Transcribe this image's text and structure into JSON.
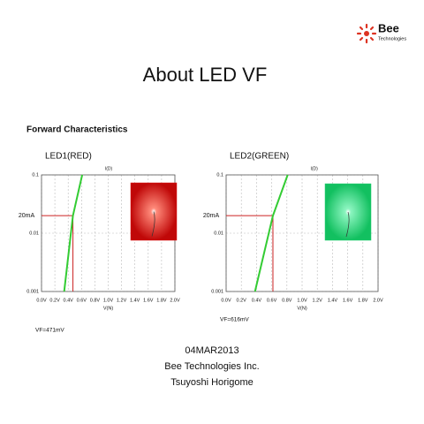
{
  "logo": {
    "name": "Bee",
    "subtitle": "Technologies"
  },
  "title": "About LED VF",
  "heading": "Forward Characteristics",
  "footer": [
    "04MAR2013",
    "Bee Technologies Inc.",
    "Tsuyoshi Horigome"
  ],
  "chart_data": [
    {
      "type": "line",
      "title": "LED1(RED)",
      "x_label": "V(N)",
      "xlim": [
        0,
        2
      ],
      "ylim": [
        0.001,
        0.1
      ],
      "log_y": true,
      "grid": true,
      "xticks": [
        {
          "value": 0,
          "label": "0.0V"
        },
        {
          "value": 0.2,
          "label": "0.2V"
        },
        {
          "value": 0.4,
          "label": "0.4V"
        },
        {
          "value": 0.6,
          "label": "0.6V"
        },
        {
          "value": 0.8,
          "label": "0.8V"
        },
        {
          "value": 1.0,
          "label": "1.0V"
        },
        {
          "value": 1.2,
          "label": "1.2V"
        },
        {
          "value": 1.4,
          "label": "1.4V"
        },
        {
          "value": 1.6,
          "label": "1.6V"
        },
        {
          "value": 1.8,
          "label": "1.8V"
        },
        {
          "value": 2.0,
          "label": "2.0V"
        }
      ],
      "yticks": [
        0.1,
        0.01,
        0.001
      ],
      "series": [
        {
          "name": "I(D)",
          "color": "#33cc33",
          "x": [
            0.34,
            0.471,
            0.61
          ],
          "values": [
            0.001,
            0.02,
            0.1
          ]
        }
      ],
      "current": {
        "value": 0.02,
        "label": "20mA"
      },
      "vf": {
        "value": 0.471,
        "label": "VF=471mV"
      },
      "marker_color": "#cc2222",
      "photo_color": "#e01010"
    },
    {
      "type": "line",
      "title": "LED2(GREEN)",
      "x_label": "V(N)",
      "xlim": [
        0,
        2
      ],
      "ylim": [
        0.001,
        0.1
      ],
      "log_y": true,
      "grid": true,
      "xticks": [
        {
          "value": 0,
          "label": "0.0V"
        },
        {
          "value": 0.2,
          "label": "0.2V"
        },
        {
          "value": 0.4,
          "label": "0.4V"
        },
        {
          "value": 0.6,
          "label": "0.6V"
        },
        {
          "value": 0.8,
          "label": "0.8V"
        },
        {
          "value": 1.0,
          "label": "1.0V"
        },
        {
          "value": 1.2,
          "label": "1.2V"
        },
        {
          "value": 1.4,
          "label": "1.4V"
        },
        {
          "value": 1.6,
          "label": "1.6V"
        },
        {
          "value": 1.8,
          "label": "1.8V"
        },
        {
          "value": 2.0,
          "label": "2.0V"
        }
      ],
      "yticks": [
        0.1,
        0.01,
        0.001
      ],
      "series": [
        {
          "name": "I(D)",
          "color": "#33cc33",
          "x": [
            0.38,
            0.616,
            0.81
          ],
          "values": [
            0.001,
            0.02,
            0.1
          ]
        }
      ],
      "current": {
        "value": 0.02,
        "label": "20mA"
      },
      "vf": {
        "value": 0.616,
        "label": "VF=616mV"
      },
      "marker_color": "#cc2222",
      "photo_color": "#20d070"
    }
  ]
}
